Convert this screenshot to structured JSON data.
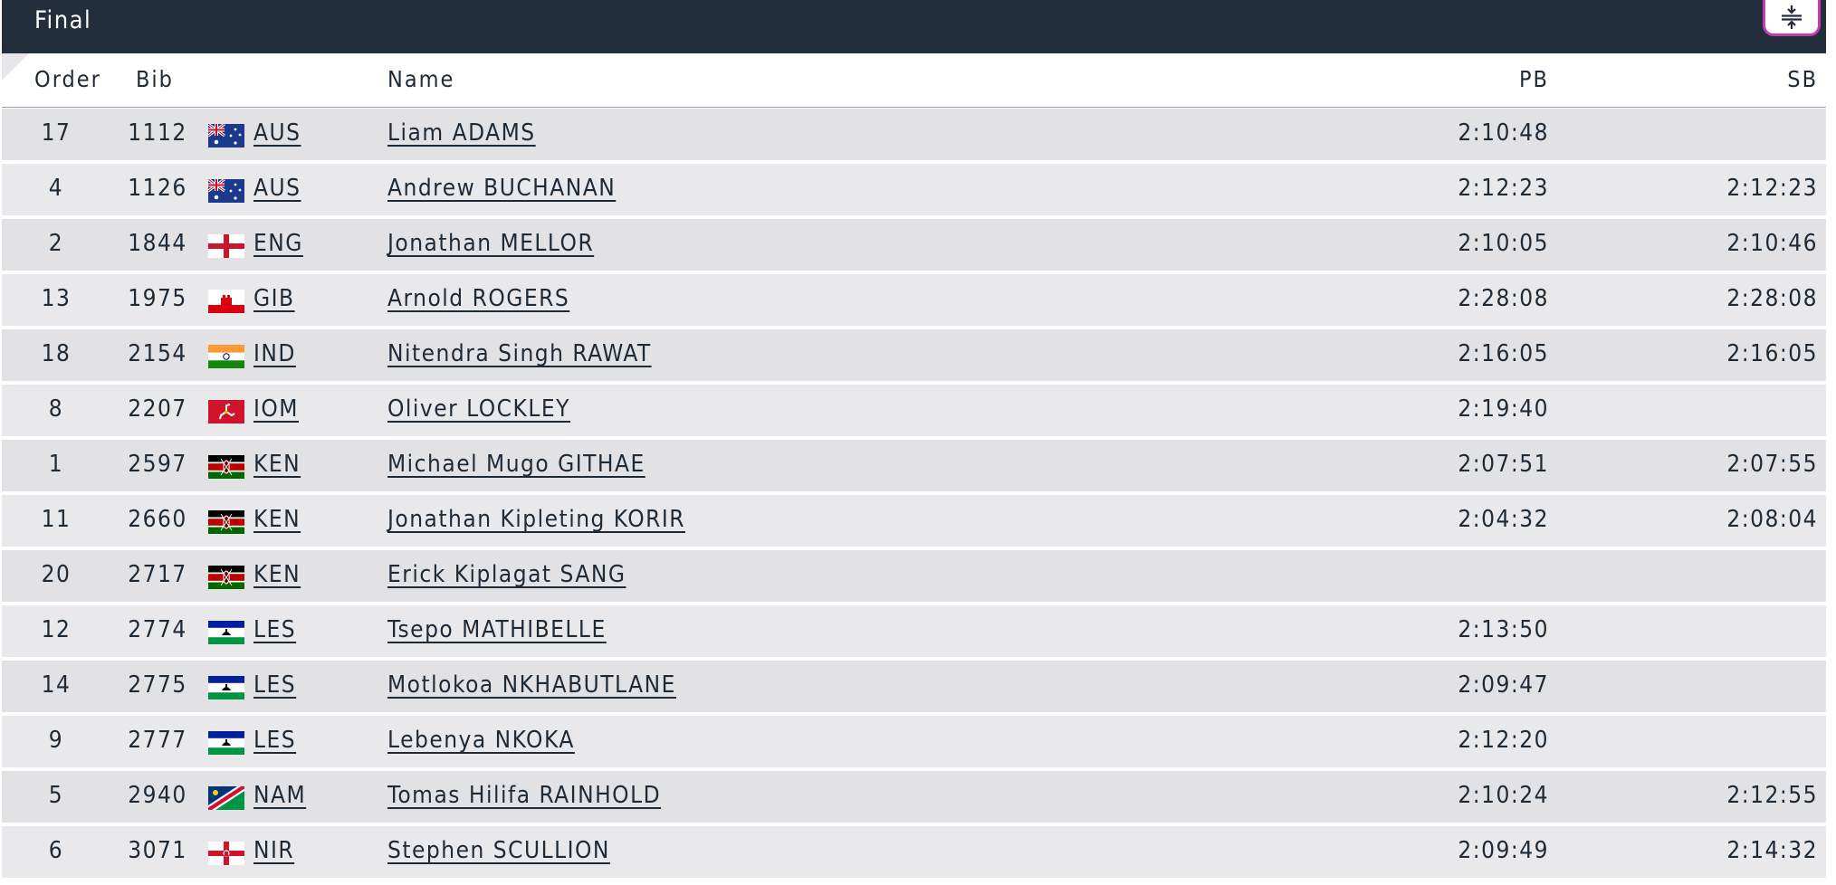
{
  "panel": {
    "title": "Final",
    "collapse_icon": "collapse-vertical-icon"
  },
  "table": {
    "headers": {
      "order": "Order",
      "bib": "Bib",
      "name": "Name",
      "pb": "PB",
      "sb": "SB"
    },
    "rows": [
      {
        "order": "17",
        "bib": "1112",
        "nat": "AUS",
        "flag": "flag-aus-icon",
        "name": "Liam ADAMS",
        "pb": "2:10:48",
        "sb": ""
      },
      {
        "order": "4",
        "bib": "1126",
        "nat": "AUS",
        "flag": "flag-aus-icon",
        "name": "Andrew BUCHANAN",
        "pb": "2:12:23",
        "sb": "2:12:23"
      },
      {
        "order": "2",
        "bib": "1844",
        "nat": "ENG",
        "flag": "flag-eng-icon",
        "name": "Jonathan MELLOR",
        "pb": "2:10:05",
        "sb": "2:10:46"
      },
      {
        "order": "13",
        "bib": "1975",
        "nat": "GIB",
        "flag": "flag-gib-icon",
        "name": "Arnold ROGERS",
        "pb": "2:28:08",
        "sb": "2:28:08"
      },
      {
        "order": "18",
        "bib": "2154",
        "nat": "IND",
        "flag": "flag-ind-icon",
        "name": "Nitendra Singh RAWAT",
        "pb": "2:16:05",
        "sb": "2:16:05"
      },
      {
        "order": "8",
        "bib": "2207",
        "nat": "IOM",
        "flag": "flag-iom-icon",
        "name": "Oliver LOCKLEY",
        "pb": "2:19:40",
        "sb": ""
      },
      {
        "order": "1",
        "bib": "2597",
        "nat": "KEN",
        "flag": "flag-ken-icon",
        "name": "Michael Mugo GITHAE",
        "pb": "2:07:51",
        "sb": "2:07:55"
      },
      {
        "order": "11",
        "bib": "2660",
        "nat": "KEN",
        "flag": "flag-ken-icon",
        "name": "Jonathan Kipleting KORIR",
        "pb": "2:04:32",
        "sb": "2:08:04"
      },
      {
        "order": "20",
        "bib": "2717",
        "nat": "KEN",
        "flag": "flag-ken-icon",
        "name": "Erick Kiplagat SANG",
        "pb": "",
        "sb": ""
      },
      {
        "order": "12",
        "bib": "2774",
        "nat": "LES",
        "flag": "flag-les-icon",
        "name": "Tsepo MATHIBELLE",
        "pb": "2:13:50",
        "sb": ""
      },
      {
        "order": "14",
        "bib": "2775",
        "nat": "LES",
        "flag": "flag-les-icon",
        "name": "Motlokoa NKHABUTLANE",
        "pb": "2:09:47",
        "sb": ""
      },
      {
        "order": "9",
        "bib": "2777",
        "nat": "LES",
        "flag": "flag-les-icon",
        "name": "Lebenya NKOKA",
        "pb": "2:12:20",
        "sb": ""
      },
      {
        "order": "5",
        "bib": "2940",
        "nat": "NAM",
        "flag": "flag-nam-icon",
        "name": "Tomas Hilifa RAINHOLD",
        "pb": "2:10:24",
        "sb": "2:12:55"
      },
      {
        "order": "6",
        "bib": "3071",
        "nat": "NIR",
        "flag": "flag-nir-icon",
        "name": "Stephen SCULLION",
        "pb": "2:09:49",
        "sb": "2:14:32"
      }
    ]
  },
  "colors": {
    "titlebar_bg": "#232e3c",
    "row_odd": "#e2e2e4",
    "row_even": "#e9e9eb",
    "button_border": "#c83ab0"
  }
}
